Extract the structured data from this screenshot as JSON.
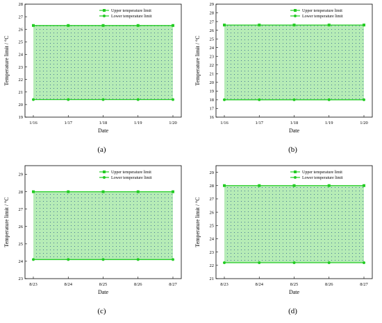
{
  "colors": {
    "line": "#22cc22",
    "fill": "#b6ecb6",
    "dots": "#2a5a8a",
    "axis": "#000000"
  },
  "chart_data": [
    {
      "type": "area",
      "panel_label": "(a)",
      "categories": [
        "1/16",
        "1/17",
        "1/18",
        "1/19",
        "1/20"
      ],
      "series": [
        {
          "name": "Upper temperature limit",
          "values": [
            26.3,
            26.3,
            26.3,
            26.3,
            26.3
          ]
        },
        {
          "name": "Lower temperature limit",
          "values": [
            20.4,
            20.4,
            20.4,
            20.4,
            20.4
          ]
        }
      ],
      "xlabel": "Date",
      "ylabel": "Temperature limit / °C",
      "ylim": [
        19,
        28
      ],
      "yticks": [
        19,
        20,
        21,
        22,
        23,
        24,
        25,
        26,
        27,
        28
      ],
      "legend": "top-right",
      "grid": false
    },
    {
      "type": "area",
      "panel_label": "(b)",
      "categories": [
        "1/16",
        "1/17",
        "1/18",
        "1/19",
        "1/20"
      ],
      "series": [
        {
          "name": "Upper temperature limit",
          "values": [
            26.6,
            26.6,
            26.6,
            26.6,
            26.6
          ]
        },
        {
          "name": "Lower temperature limit",
          "values": [
            18.0,
            18.0,
            18.0,
            18.0,
            18.0
          ]
        }
      ],
      "xlabel": "Date",
      "ylabel": "Temperature limit / °C",
      "ylim": [
        16,
        29
      ],
      "yticks": [
        16,
        17,
        18,
        19,
        20,
        21,
        22,
        23,
        24,
        25,
        26,
        27,
        28,
        29
      ],
      "legend": "top-right",
      "grid": false
    },
    {
      "type": "area",
      "panel_label": "(c)",
      "categories": [
        "8/23",
        "8/24",
        "8/25",
        "8/26",
        "8/27"
      ],
      "series": [
        {
          "name": "Upper temperature limit",
          "values": [
            28.0,
            28.0,
            28.0,
            28.0,
            28.0
          ]
        },
        {
          "name": "Lower temperature limit",
          "values": [
            24.1,
            24.1,
            24.1,
            24.1,
            24.1
          ]
        }
      ],
      "xlabel": "Date",
      "ylabel": "Temperature limit / °C",
      "ylim": [
        23,
        29.5
      ],
      "yticks": [
        23,
        24,
        25,
        26,
        27,
        28,
        29
      ],
      "legend": "top-right",
      "grid": false
    },
    {
      "type": "area",
      "panel_label": "(d)",
      "categories": [
        "8/23",
        "8/24",
        "8/25",
        "8/26",
        "8/27"
      ],
      "series": [
        {
          "name": "Upper temperature limit",
          "values": [
            28.0,
            28.0,
            28.0,
            28.0,
            28.0
          ]
        },
        {
          "name": "Lower temperature limit",
          "values": [
            22.2,
            22.2,
            22.2,
            22.2,
            22.2
          ]
        }
      ],
      "xlabel": "Date",
      "ylabel": "Temperature limit / °C",
      "ylim": [
        21,
        29.5
      ],
      "yticks": [
        21,
        22,
        23,
        24,
        25,
        26,
        27,
        28,
        29
      ],
      "legend": "top-right",
      "grid": false
    }
  ]
}
